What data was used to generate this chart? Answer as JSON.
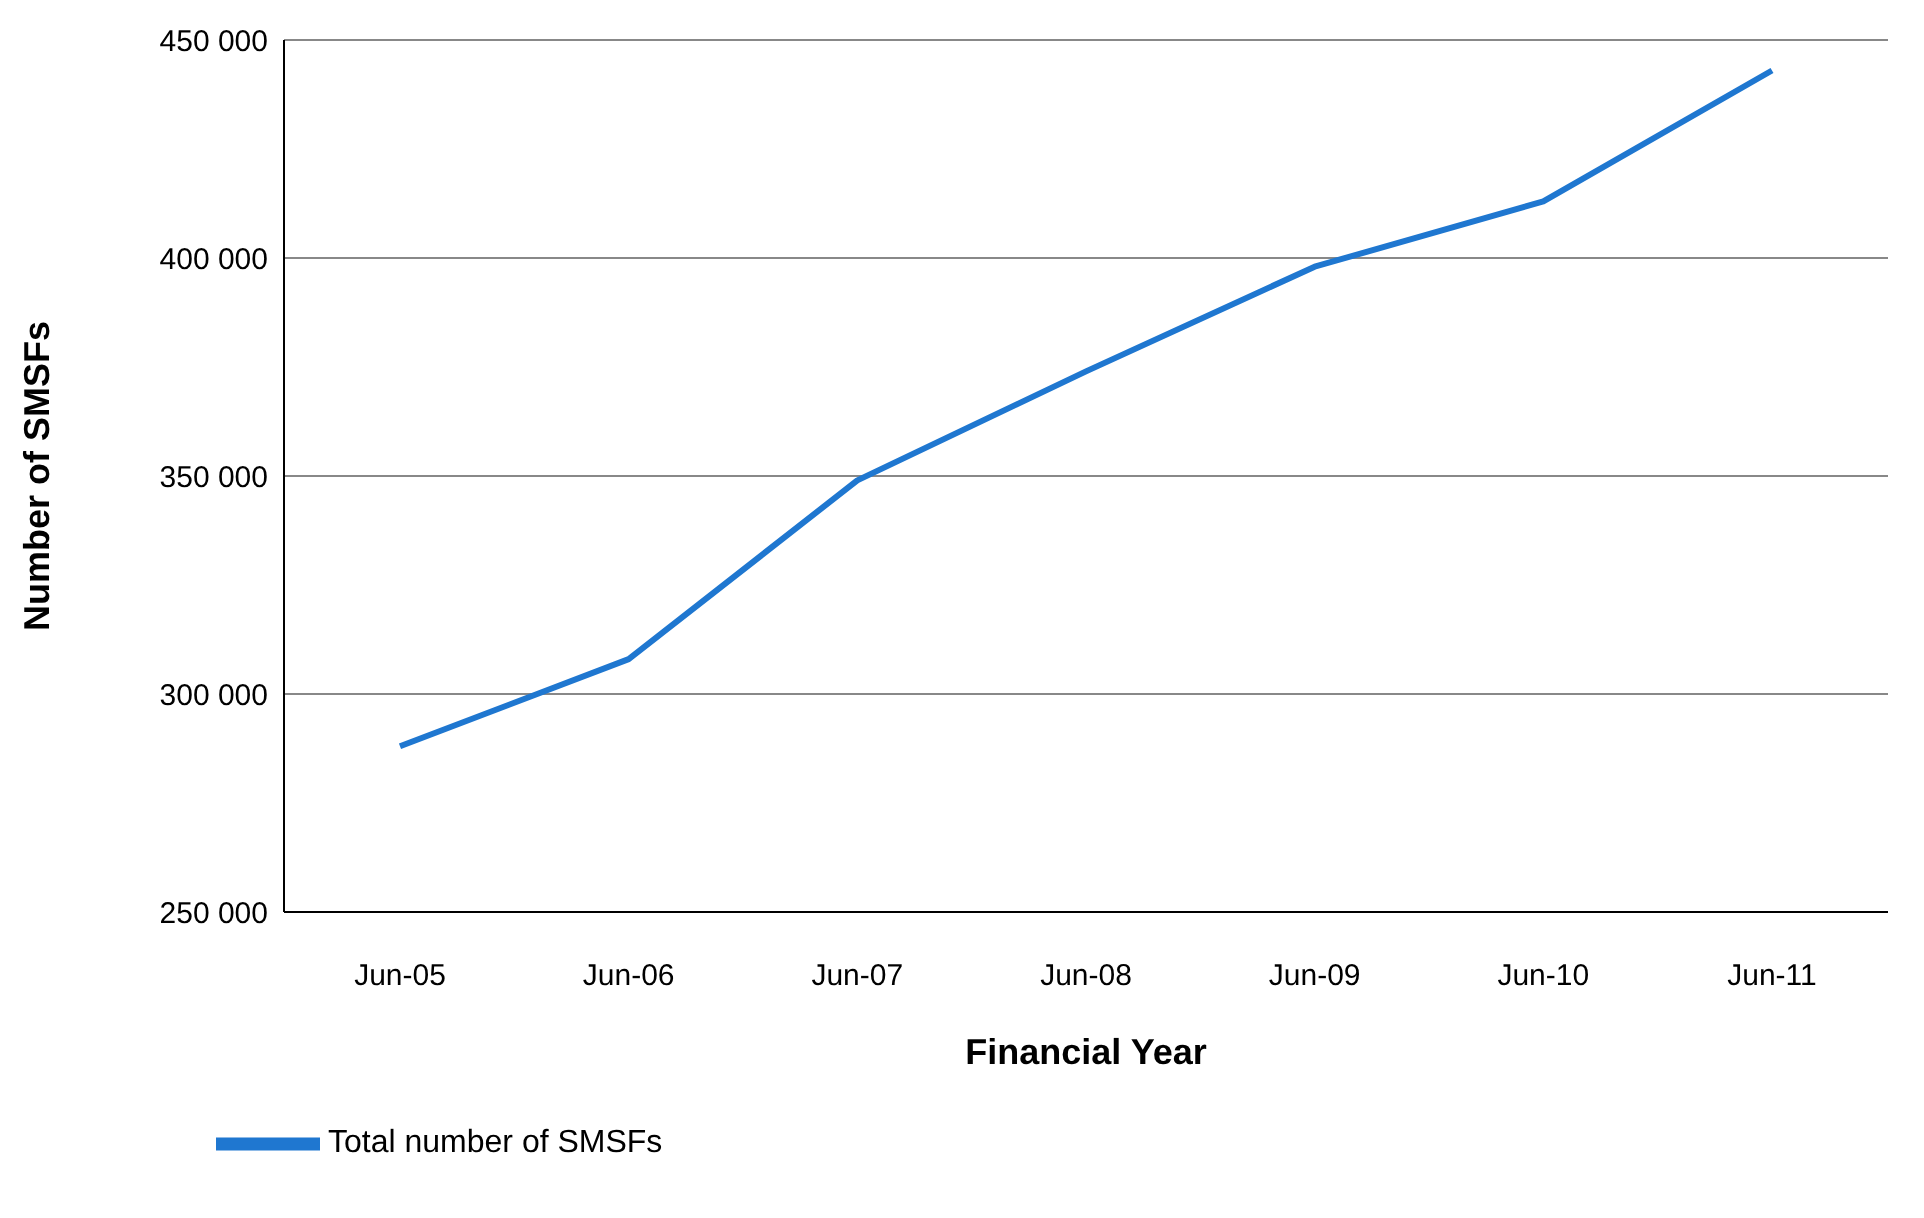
{
  "chart_data": {
    "type": "line",
    "xlabel": "Financial Year",
    "ylabel": "Number of SMSFs",
    "categories": [
      "Jun-05",
      "Jun-06",
      "Jun-07",
      "Jun-08",
      "Jun-09",
      "Jun-10",
      "Jun-11"
    ],
    "series": [
      {
        "name": "Total number of SMSFs",
        "color": "#1f77d0",
        "values": [
          288000,
          308000,
          349000,
          374000,
          398000,
          413000,
          443000
        ]
      }
    ],
    "ylim": [
      250000,
      450000
    ],
    "yticks": [
      {
        "value": 250000,
        "label": "250 000"
      },
      {
        "value": 300000,
        "label": "300 000"
      },
      {
        "value": 350000,
        "label": "350 000"
      },
      {
        "value": 400000,
        "label": "400 000"
      },
      {
        "value": 450000,
        "label": "450 000"
      }
    ],
    "grid": "y",
    "legend": "bottom left",
    "marker": "none",
    "line_style": "solid"
  }
}
